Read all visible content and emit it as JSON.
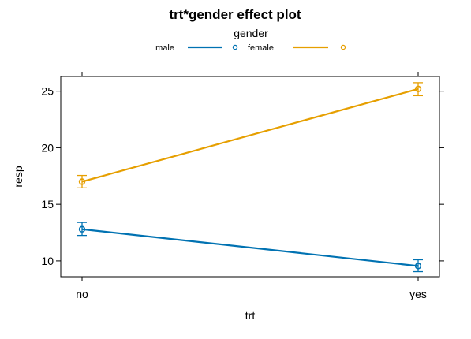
{
  "chart_data": {
    "type": "line",
    "title": "trt*gender effect plot",
    "legend": {
      "title": "gender",
      "position": "top"
    },
    "xlabel": "trt",
    "ylabel": "resp",
    "categories": [
      "no",
      "yes"
    ],
    "ylim": [
      8.6,
      26.3
    ],
    "yticks": [
      10,
      15,
      20,
      25
    ],
    "grid": false,
    "series": [
      {
        "name": "male",
        "color": "#0072B2",
        "values": [
          12.8,
          9.55
        ],
        "lower": [
          12.25,
          9.05
        ],
        "upper": [
          13.4,
          10.1
        ]
      },
      {
        "name": "female",
        "color": "#E69F00",
        "values": [
          17.0,
          25.2
        ],
        "lower": [
          16.45,
          24.6
        ],
        "upper": [
          17.55,
          25.75
        ]
      }
    ]
  }
}
